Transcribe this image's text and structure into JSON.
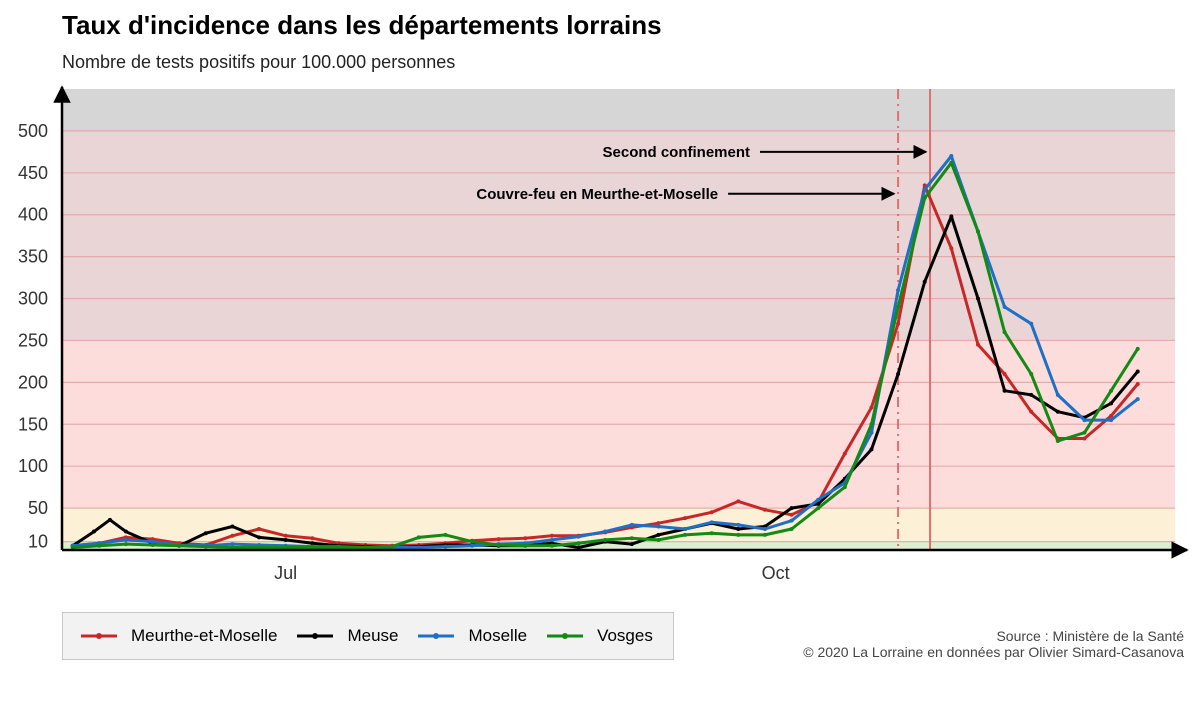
{
  "title": "Taux d'incidence dans les départements lorrains",
  "subtitle": "Nombre de tests positifs pour 100.000 personnes",
  "source_line1": "Source : Ministère de la Santé",
  "source_line2": "© 2020 La Lorraine en données par Olivier Simard-Casanova",
  "chart_data": {
    "type": "line",
    "x_axis": {
      "start": "2020-05-20",
      "end": "2020-12-15",
      "tick_labels": [
        "Jul",
        "Oct"
      ],
      "tick_dates": [
        "2020-07-01",
        "2020-10-01"
      ]
    },
    "y_axis": {
      "range": [
        0,
        550
      ],
      "tick_labels": [
        "10",
        "50",
        "100",
        "150",
        "200",
        "250",
        "300",
        "350",
        "400",
        "450",
        "500"
      ],
      "ticks": [
        10,
        50,
        100,
        150,
        200,
        250,
        300,
        350,
        400,
        450,
        500
      ]
    },
    "bands": [
      {
        "from": 0,
        "to": 10,
        "color": "#dcefd0"
      },
      {
        "from": 10,
        "to": 50,
        "color": "#fcf0d6"
      },
      {
        "from": 50,
        "to": 250,
        "color": "#fddcdc"
      },
      {
        "from": 250,
        "to": 500,
        "color": "#e9d5d5"
      },
      {
        "from": 500,
        "to": 550,
        "color": "#d6d6d6"
      }
    ],
    "annotations": [
      {
        "label": "Second confinement",
        "date": "2020-10-30",
        "line_style": "solid",
        "y": 475
      },
      {
        "label": "Couvre-feu en Meurthe-et-Moselle",
        "date": "2020-10-24",
        "line_style": "dashdot",
        "y": 425
      }
    ],
    "series": [
      {
        "name": "Meurthe-et-Moselle",
        "color": "#c62828",
        "points": [
          [
            "2020-05-22",
            5
          ],
          [
            "2020-05-27",
            8
          ],
          [
            "2020-06-01",
            15
          ],
          [
            "2020-06-06",
            13
          ],
          [
            "2020-06-11",
            8
          ],
          [
            "2020-06-16",
            6
          ],
          [
            "2020-06-21",
            17
          ],
          [
            "2020-06-26",
            25
          ],
          [
            "2020-07-01",
            17
          ],
          [
            "2020-07-06",
            14
          ],
          [
            "2020-07-11",
            8
          ],
          [
            "2020-07-16",
            6
          ],
          [
            "2020-07-21",
            5
          ],
          [
            "2020-07-26",
            6
          ],
          [
            "2020-07-31",
            8
          ],
          [
            "2020-08-05",
            11
          ],
          [
            "2020-08-10",
            13
          ],
          [
            "2020-08-15",
            14
          ],
          [
            "2020-08-20",
            17
          ],
          [
            "2020-08-25",
            17
          ],
          [
            "2020-08-30",
            21
          ],
          [
            "2020-09-04",
            27
          ],
          [
            "2020-09-09",
            32
          ],
          [
            "2020-09-14",
            38
          ],
          [
            "2020-09-19",
            45
          ],
          [
            "2020-09-24",
            58
          ],
          [
            "2020-09-29",
            48
          ],
          [
            "2020-10-04",
            42
          ],
          [
            "2020-10-09",
            57
          ],
          [
            "2020-10-14",
            115
          ],
          [
            "2020-10-19",
            170
          ],
          [
            "2020-10-24",
            270
          ],
          [
            "2020-10-29",
            435
          ],
          [
            "2020-11-03",
            360
          ],
          [
            "2020-11-08",
            245
          ],
          [
            "2020-11-13",
            210
          ],
          [
            "2020-11-18",
            165
          ],
          [
            "2020-11-23",
            133
          ],
          [
            "2020-11-28",
            133
          ],
          [
            "2020-12-03",
            160
          ],
          [
            "2020-12-08",
            198
          ]
        ]
      },
      {
        "name": "Meuse",
        "color": "#000000",
        "points": [
          [
            "2020-05-22",
            5
          ],
          [
            "2020-05-26",
            22
          ],
          [
            "2020-05-29",
            36
          ],
          [
            "2020-06-01",
            22
          ],
          [
            "2020-06-06",
            8
          ],
          [
            "2020-06-11",
            5
          ],
          [
            "2020-06-16",
            20
          ],
          [
            "2020-06-21",
            28
          ],
          [
            "2020-06-26",
            15
          ],
          [
            "2020-07-01",
            12
          ],
          [
            "2020-07-06",
            8
          ],
          [
            "2020-07-11",
            5
          ],
          [
            "2020-07-16",
            4
          ],
          [
            "2020-07-21",
            3
          ],
          [
            "2020-07-26",
            4
          ],
          [
            "2020-07-31",
            6
          ],
          [
            "2020-08-05",
            6
          ],
          [
            "2020-08-10",
            5
          ],
          [
            "2020-08-15",
            5
          ],
          [
            "2020-08-20",
            8
          ],
          [
            "2020-08-25",
            3
          ],
          [
            "2020-08-30",
            10
          ],
          [
            "2020-09-04",
            7
          ],
          [
            "2020-09-09",
            18
          ],
          [
            "2020-09-14",
            25
          ],
          [
            "2020-09-19",
            32
          ],
          [
            "2020-09-24",
            25
          ],
          [
            "2020-09-29",
            28
          ],
          [
            "2020-10-04",
            50
          ],
          [
            "2020-10-09",
            55
          ],
          [
            "2020-10-14",
            85
          ],
          [
            "2020-10-19",
            120
          ],
          [
            "2020-10-24",
            210
          ],
          [
            "2020-10-29",
            320
          ],
          [
            "2020-11-03",
            398
          ],
          [
            "2020-11-08",
            300
          ],
          [
            "2020-11-13",
            190
          ],
          [
            "2020-11-18",
            185
          ],
          [
            "2020-11-23",
            165
          ],
          [
            "2020-11-28",
            158
          ],
          [
            "2020-12-03",
            175
          ],
          [
            "2020-12-08",
            213
          ]
        ]
      },
      {
        "name": "Moselle",
        "color": "#1f6fc5",
        "points": [
          [
            "2020-05-22",
            5
          ],
          [
            "2020-05-27",
            8
          ],
          [
            "2020-06-01",
            12
          ],
          [
            "2020-06-06",
            10
          ],
          [
            "2020-06-11",
            6
          ],
          [
            "2020-06-16",
            5
          ],
          [
            "2020-06-21",
            7
          ],
          [
            "2020-06-26",
            6
          ],
          [
            "2020-07-01",
            5
          ],
          [
            "2020-07-06",
            4
          ],
          [
            "2020-07-11",
            4
          ],
          [
            "2020-07-16",
            3
          ],
          [
            "2020-07-21",
            3
          ],
          [
            "2020-07-26",
            3
          ],
          [
            "2020-07-31",
            4
          ],
          [
            "2020-08-05",
            5
          ],
          [
            "2020-08-10",
            7
          ],
          [
            "2020-08-15",
            8
          ],
          [
            "2020-08-20",
            12
          ],
          [
            "2020-08-25",
            16
          ],
          [
            "2020-08-30",
            22
          ],
          [
            "2020-09-04",
            30
          ],
          [
            "2020-09-09",
            28
          ],
          [
            "2020-09-14",
            25
          ],
          [
            "2020-09-19",
            33
          ],
          [
            "2020-09-24",
            30
          ],
          [
            "2020-09-29",
            25
          ],
          [
            "2020-10-04",
            35
          ],
          [
            "2020-10-09",
            60
          ],
          [
            "2020-10-14",
            80
          ],
          [
            "2020-10-19",
            140
          ],
          [
            "2020-10-24",
            310
          ],
          [
            "2020-10-29",
            430
          ],
          [
            "2020-11-03",
            470
          ],
          [
            "2020-11-08",
            380
          ],
          [
            "2020-11-13",
            290
          ],
          [
            "2020-11-18",
            270
          ],
          [
            "2020-11-23",
            185
          ],
          [
            "2020-11-28",
            155
          ],
          [
            "2020-12-03",
            155
          ],
          [
            "2020-12-08",
            180
          ]
        ]
      },
      {
        "name": "Vosges",
        "color": "#138a13",
        "points": [
          [
            "2020-05-22",
            3
          ],
          [
            "2020-05-27",
            5
          ],
          [
            "2020-06-01",
            7
          ],
          [
            "2020-06-06",
            6
          ],
          [
            "2020-06-11",
            5
          ],
          [
            "2020-06-16",
            4
          ],
          [
            "2020-06-21",
            3
          ],
          [
            "2020-06-26",
            3
          ],
          [
            "2020-07-01",
            3
          ],
          [
            "2020-07-06",
            3
          ],
          [
            "2020-07-11",
            3
          ],
          [
            "2020-07-16",
            3
          ],
          [
            "2020-07-21",
            4
          ],
          [
            "2020-07-26",
            15
          ],
          [
            "2020-07-31",
            18
          ],
          [
            "2020-08-05",
            10
          ],
          [
            "2020-08-10",
            6
          ],
          [
            "2020-08-15",
            5
          ],
          [
            "2020-08-20",
            5
          ],
          [
            "2020-08-25",
            8
          ],
          [
            "2020-08-30",
            12
          ],
          [
            "2020-09-04",
            14
          ],
          [
            "2020-09-09",
            12
          ],
          [
            "2020-09-14",
            18
          ],
          [
            "2020-09-19",
            20
          ],
          [
            "2020-09-24",
            18
          ],
          [
            "2020-09-29",
            18
          ],
          [
            "2020-10-04",
            25
          ],
          [
            "2020-10-09",
            50
          ],
          [
            "2020-10-14",
            75
          ],
          [
            "2020-10-19",
            150
          ],
          [
            "2020-10-24",
            290
          ],
          [
            "2020-10-29",
            420
          ],
          [
            "2020-11-03",
            462
          ],
          [
            "2020-11-08",
            380
          ],
          [
            "2020-11-13",
            260
          ],
          [
            "2020-11-18",
            210
          ],
          [
            "2020-11-23",
            130
          ],
          [
            "2020-11-28",
            140
          ],
          [
            "2020-12-03",
            190
          ],
          [
            "2020-12-08",
            240
          ]
        ]
      }
    ],
    "legend_position": "bottom-left"
  }
}
